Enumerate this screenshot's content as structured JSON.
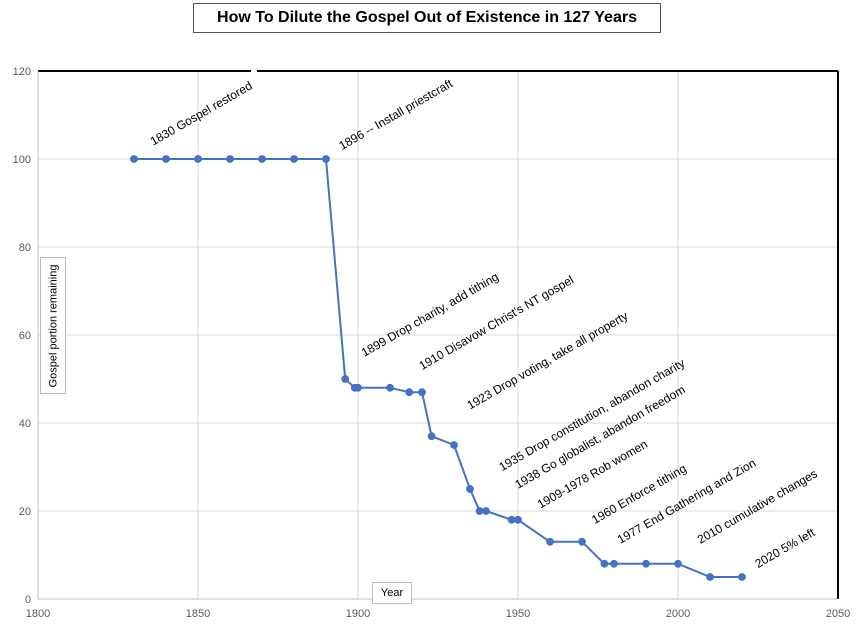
{
  "chart_data": {
    "type": "line",
    "title": "How To Dilute the Gospel Out of Existence in 127 Years",
    "xlabel": "Year",
    "ylabel": "Gospel portion remaining",
    "xlim": [
      1800,
      2050
    ],
    "ylim": [
      0,
      120
    ],
    "xticks": [
      1800,
      1850,
      1900,
      1950,
      2000,
      2050
    ],
    "yticks": [
      0,
      20,
      40,
      60,
      80,
      100,
      120
    ],
    "grid": true,
    "series": [
      {
        "name": "Gospel portion remaining",
        "color": "#4472c4",
        "x": [
          1830,
          1840,
          1850,
          1860,
          1870,
          1880,
          1890,
          1896,
          1899,
          1900,
          1910,
          1916,
          1920,
          1923,
          1930,
          1935,
          1938,
          1940,
          1948,
          1950,
          1960,
          1970,
          1977,
          1980,
          1990,
          2000,
          2010,
          2020
        ],
        "y": [
          100,
          100,
          100,
          100,
          100,
          100,
          100,
          50,
          48,
          48,
          48,
          47,
          47,
          37,
          35,
          25,
          20,
          20,
          18,
          18,
          13,
          13,
          8,
          8,
          8,
          8,
          5,
          5
        ]
      }
    ],
    "annotations": [
      {
        "text": "1830 Gospel restored",
        "x": 1836,
        "y": 103
      },
      {
        "text": "1896 -- Install priestcraft",
        "x": 1895,
        "y": 102
      },
      {
        "text": "1899 Drop charity, add tithing",
        "x": 1902,
        "y": 55
      },
      {
        "text": "1910 Disavow Christ's NT gospel",
        "x": 1920,
        "y": 52
      },
      {
        "text": "1923 Drop voting, take all property",
        "x": 1935,
        "y": 43
      },
      {
        "text": "1935 Drop constitution, abandon charity",
        "x": 1945,
        "y": 29
      },
      {
        "text": "1938 Go globalist, abandon freedom",
        "x": 1950,
        "y": 25
      },
      {
        "text": "1909-1978 Rob women",
        "x": 1957,
        "y": 20.5
      },
      {
        "text": "1960 Enforce tithing",
        "x": 1974,
        "y": 17
      },
      {
        "text": "1977 End Gathering and Zion",
        "x": 1982,
        "y": 12.5
      },
      {
        "text": "2010 cumulative changes",
        "x": 2007,
        "y": 12.5
      },
      {
        "text": "2020 5% left",
        "x": 2025,
        "y": 7
      }
    ]
  }
}
